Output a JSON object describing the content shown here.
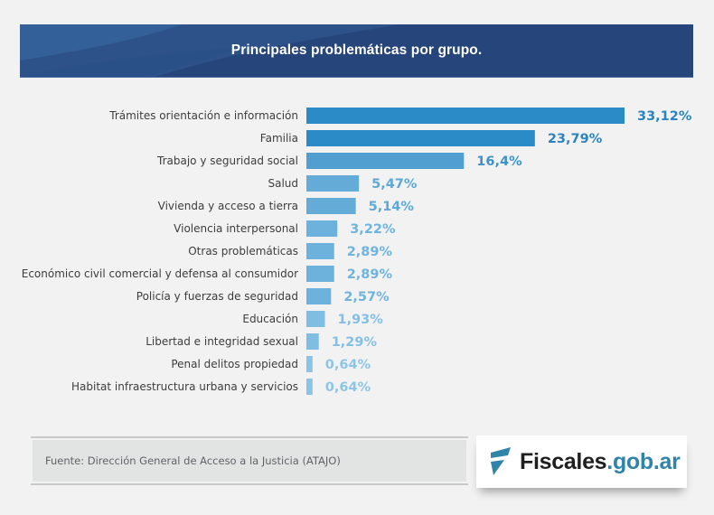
{
  "header": {
    "title": "Principales problemáticas por grupo."
  },
  "chart_data": {
    "type": "bar",
    "orientation": "horizontal",
    "title": "Principales problemáticas por grupo.",
    "xlabel": "",
    "ylabel": "",
    "unit": "%",
    "grid": false,
    "xlim": [
      0,
      33.12
    ],
    "categories": [
      "Trámites orientación e información",
      "Familia",
      "Trabajo y seguridad social",
      "Salud",
      "Vivienda y acceso a tierra",
      "Violencia interpersonal",
      "Otras problemáticas",
      "Económico civil comercial y defensa al consumidor",
      "Policía y fuerzas de seguridad",
      "Educación",
      "Libertad e integridad sexual",
      "Penal delitos propiedad",
      "Habitat infraestructura urbana y servicios"
    ],
    "values": [
      33.12,
      23.79,
      16.4,
      5.47,
      5.14,
      3.22,
      2.89,
      2.89,
      2.57,
      1.93,
      1.29,
      0.64,
      0.64
    ],
    "value_labels": [
      "33,12%",
      "23,79%",
      "16,4%",
      "5,47%",
      "5,14%",
      "3,22%",
      "2,89%",
      "2,89%",
      "2,57%",
      "1,93%",
      "1,29%",
      "0,64%",
      "0,64%"
    ],
    "colors": [
      "#2b8bc7",
      "#2b8bc7",
      "#519fd1",
      "#64abd8",
      "#64abd8",
      "#6cb2dc",
      "#6cb2dc",
      "#6cb2dc",
      "#6cb2dc",
      "#80bde2",
      "#80bde2",
      "#8ac3e5",
      "#8ac3e5"
    ],
    "label_colors": [
      "#2b84bf",
      "#2b84bf",
      "#3d92c8",
      "#5ea8d8",
      "#5ea8d8",
      "#6fb4df",
      "#6fb4df",
      "#6fb4df",
      "#6fb4df",
      "#83c0e5",
      "#83c0e5",
      "#8dc5e6",
      "#8dc5e6"
    ]
  },
  "footer": {
    "source": "Fuente: Dirección General de Acceso a la Justicia (ATAJO)",
    "logo_part1": "Fiscales",
    "logo_part2": ".gob.ar",
    "logo_icon": "fiscales-f-logo-icon"
  }
}
